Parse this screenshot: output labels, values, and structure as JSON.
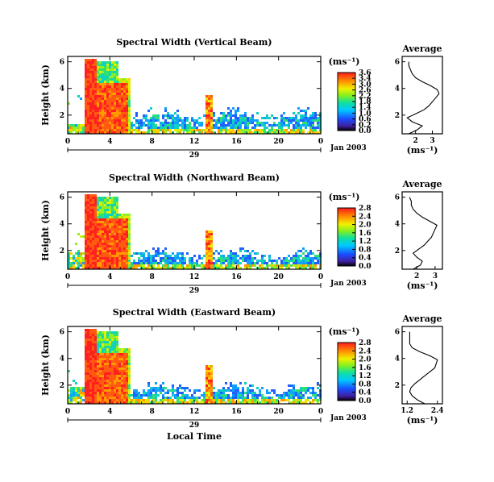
{
  "chart_data": [
    {
      "type": "heatmap",
      "title": "Spectral Width (Vertical Beam)",
      "ylabel": "Height (km)",
      "xticks": [
        "0",
        "4",
        "8",
        "12",
        "16",
        "20",
        "0"
      ],
      "yticks": [
        "2",
        "4",
        "6"
      ],
      "xlim": [
        0,
        24
      ],
      "ylim": [
        0.6,
        6.4
      ],
      "date_day": "29",
      "date_label": "Jan 2003",
      "colorbar": {
        "unit": "(ms⁻¹)",
        "ticks": [
          "3.6",
          "3.4",
          "3.0",
          "2.6",
          "2.2",
          "1.8",
          "1.4",
          "1.0",
          "0.6",
          "0.2",
          "0.0"
        ]
      },
      "avg_profile": {
        "title": "Average",
        "xlabel": "(ms⁻¹)",
        "xticks": [
          "2",
          "3"
        ],
        "yticks": [
          "2",
          "4",
          "6"
        ],
        "xlim": [
          1.2,
          3.6
        ],
        "points": [
          [
            1.6,
            0.6
          ],
          [
            2.1,
            0.9
          ],
          [
            2.4,
            1.2
          ],
          [
            1.8,
            1.5
          ],
          [
            1.5,
            1.8
          ],
          [
            2.0,
            2.1
          ],
          [
            2.5,
            2.4
          ],
          [
            2.8,
            2.7
          ],
          [
            3.0,
            3.0
          ],
          [
            3.2,
            3.3
          ],
          [
            3.4,
            3.6
          ],
          [
            3.3,
            3.9
          ],
          [
            2.9,
            4.2
          ],
          [
            2.4,
            4.5
          ],
          [
            2.0,
            4.8
          ],
          [
            1.8,
            5.1
          ],
          [
            1.7,
            5.4
          ],
          [
            1.6,
            5.7
          ],
          [
            1.6,
            6.0
          ]
        ]
      }
    },
    {
      "type": "heatmap",
      "title": "Spectral Width (Northward Beam)",
      "ylabel": "Height (km)",
      "xticks": [
        "0",
        "4",
        "8",
        "12",
        "16",
        "20",
        "0"
      ],
      "yticks": [
        "2",
        "4",
        "6"
      ],
      "xlim": [
        0,
        24
      ],
      "ylim": [
        0.6,
        6.4
      ],
      "date_day": "29",
      "date_label": "Jan 2003",
      "colorbar": {
        "unit": "(ms⁻¹)",
        "ticks": [
          "2.8",
          "2.4",
          "2.0",
          "1.6",
          "1.2",
          "0.8",
          "0.4",
          "0.0"
        ]
      },
      "avg_profile": {
        "title": "Average",
        "xlabel": "(ms⁻¹)",
        "xticks": [
          "2",
          "3"
        ],
        "yticks": [
          "2",
          "4",
          "6"
        ],
        "xlim": [
          1.2,
          3.4
        ],
        "points": [
          [
            1.8,
            0.6
          ],
          [
            2.2,
            0.9
          ],
          [
            2.3,
            1.2
          ],
          [
            2.0,
            1.5
          ],
          [
            1.8,
            1.8
          ],
          [
            2.1,
            2.1
          ],
          [
            2.4,
            2.4
          ],
          [
            2.6,
            2.7
          ],
          [
            2.8,
            3.0
          ],
          [
            2.9,
            3.3
          ],
          [
            3.0,
            3.6
          ],
          [
            3.1,
            3.9
          ],
          [
            2.7,
            4.2
          ],
          [
            2.3,
            4.5
          ],
          [
            2.0,
            4.8
          ],
          [
            1.8,
            5.1
          ],
          [
            1.7,
            5.4
          ],
          [
            1.7,
            5.7
          ],
          [
            1.6,
            6.0
          ]
        ]
      }
    },
    {
      "type": "heatmap",
      "title": "Spectral Width (Eastward Beam)",
      "ylabel": "Height (km)",
      "xticks": [
        "0",
        "4",
        "8",
        "12",
        "16",
        "20",
        "0"
      ],
      "yticks": [
        "2",
        "4",
        "6"
      ],
      "xlim": [
        0,
        24
      ],
      "ylim": [
        0.6,
        6.4
      ],
      "date_day": "29",
      "date_label": "Jan 2003",
      "xlabel": "Local Time",
      "colorbar": {
        "unit": "(ms⁻¹)",
        "ticks": [
          "2.8",
          "2.4",
          "2.0",
          "1.6",
          "1.2",
          "0.8",
          "0.4",
          "0.0"
        ]
      },
      "avg_profile": {
        "title": "Average",
        "xlabel": "(ms⁻¹)",
        "xticks": [
          "1.2",
          "2.4"
        ],
        "yticks": [
          "2",
          "4",
          "6"
        ],
        "xlim": [
          1.0,
          2.6
        ],
        "points": [
          [
            1.9,
            0.6
          ],
          [
            1.6,
            0.9
          ],
          [
            1.4,
            1.2
          ],
          [
            1.3,
            1.5
          ],
          [
            1.35,
            1.8
          ],
          [
            1.5,
            2.1
          ],
          [
            1.7,
            2.4
          ],
          [
            1.9,
            2.7
          ],
          [
            2.1,
            3.0
          ],
          [
            2.3,
            3.3
          ],
          [
            2.35,
            3.6
          ],
          [
            2.4,
            3.9
          ],
          [
            2.1,
            4.2
          ],
          [
            1.7,
            4.5
          ],
          [
            1.4,
            4.8
          ],
          [
            1.3,
            5.1
          ],
          [
            1.3,
            5.4
          ],
          [
            1.3,
            5.7
          ],
          [
            1.3,
            6.0
          ]
        ]
      }
    }
  ]
}
